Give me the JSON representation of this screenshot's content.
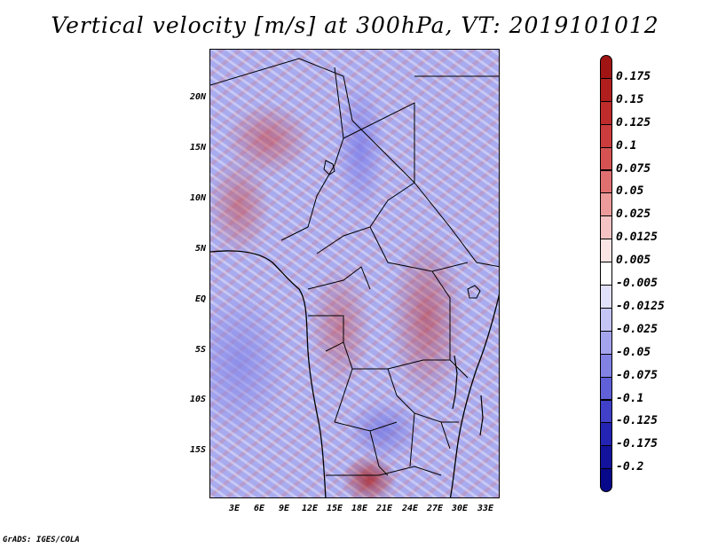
{
  "title": "Vertical velocity [m/s] at 300hPa, VT: 2019101012",
  "credit": "GrADS: IGES/COLA",
  "lat_ticks": [
    "20N",
    "15N",
    "10N",
    "5N",
    "EQ",
    "5S",
    "10S",
    "15S"
  ],
  "lon_ticks": [
    "3E",
    "6E",
    "9E",
    "12E",
    "15E",
    "18E",
    "21E",
    "24E",
    "27E",
    "30E",
    "33E"
  ],
  "colorbar": {
    "labels": [
      "0.175",
      "0.15",
      "0.125",
      "0.1",
      "0.075",
      "0.05",
      "0.025",
      "0.0125",
      "0.005",
      "-0.005",
      "-0.0125",
      "-0.025",
      "-0.05",
      "-0.075",
      "-0.1",
      "-0.125",
      "-0.175",
      "-0.2"
    ],
    "colors": [
      "#a01414",
      "#b01e1e",
      "#c02c2c",
      "#cc3c3c",
      "#d65252",
      "#e07070",
      "#ec9a9a",
      "#f5c3c3",
      "#fbe4e4",
      "#ffffff",
      "#e0e0fb",
      "#c4c4f5",
      "#a4a4ee",
      "#8282e4",
      "#6060d8",
      "#4040c8",
      "#2424b4",
      "#12129c",
      "#08088a"
    ]
  },
  "map": {
    "lat_range": [
      -19,
      24.5
    ],
    "lon_range": [
      0,
      34.5
    ],
    "variable": "Vertical velocity",
    "units": "m/s",
    "level": "300hPa",
    "valid_time": "2019101012"
  }
}
